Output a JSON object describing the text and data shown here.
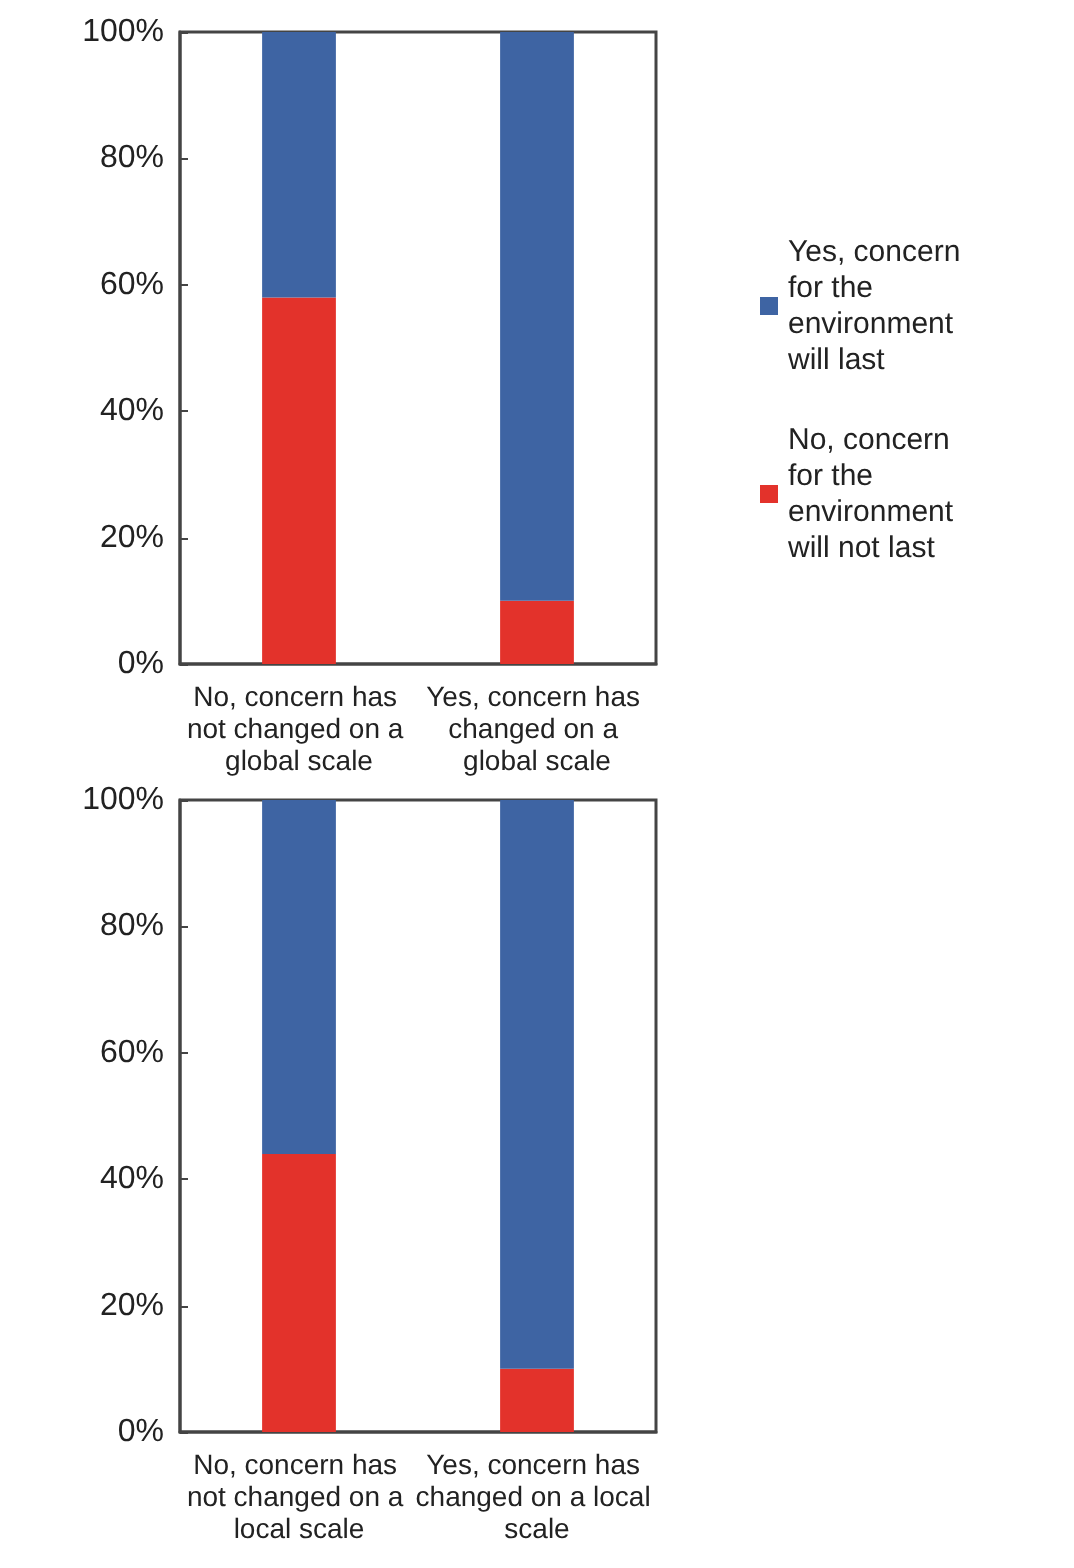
{
  "chart_data": [
    {
      "type": "bar",
      "stacked": true,
      "categories": [
        "No, concern has not changed on a global scale",
        "Yes, concern has changed on a global scale"
      ],
      "series": [
        {
          "name": "No, concern for the environment will not last",
          "color": "#e3322b",
          "values": [
            58,
            10
          ]
        },
        {
          "name": "Yes, concern for the environment will last",
          "color": "#3e64a3",
          "values": [
            42,
            90
          ]
        }
      ],
      "ylim": [
        0,
        100
      ],
      "yticks": [
        {
          "value": 0,
          "label": "0%"
        },
        {
          "value": 20,
          "label": "20%"
        },
        {
          "value": 40,
          "label": "40%"
        },
        {
          "value": 60,
          "label": "60%"
        },
        {
          "value": 80,
          "label": "80%"
        },
        {
          "value": 100,
          "label": "100%"
        }
      ],
      "grid": false,
      "legend": "right"
    },
    {
      "type": "bar",
      "stacked": true,
      "categories": [
        "No, concern has not changed on a local scale",
        "Yes, concern has changed on a local scale"
      ],
      "series": [
        {
          "name": "No, concern for the environment will not last",
          "color": "#e3322b",
          "values": [
            44,
            10
          ]
        },
        {
          "name": "Yes, concern for the environment will last",
          "color": "#3e64a3",
          "values": [
            56,
            90
          ]
        }
      ],
      "ylim": [
        0,
        100
      ],
      "yticks": [
        {
          "value": 0,
          "label": "0%"
        },
        {
          "value": 20,
          "label": "20%"
        },
        {
          "value": 40,
          "label": "40%"
        },
        {
          "value": 60,
          "label": "60%"
        },
        {
          "value": 80,
          "label": "80%"
        },
        {
          "value": 100,
          "label": "100%"
        }
      ],
      "grid": false,
      "legend": false
    }
  ]
}
